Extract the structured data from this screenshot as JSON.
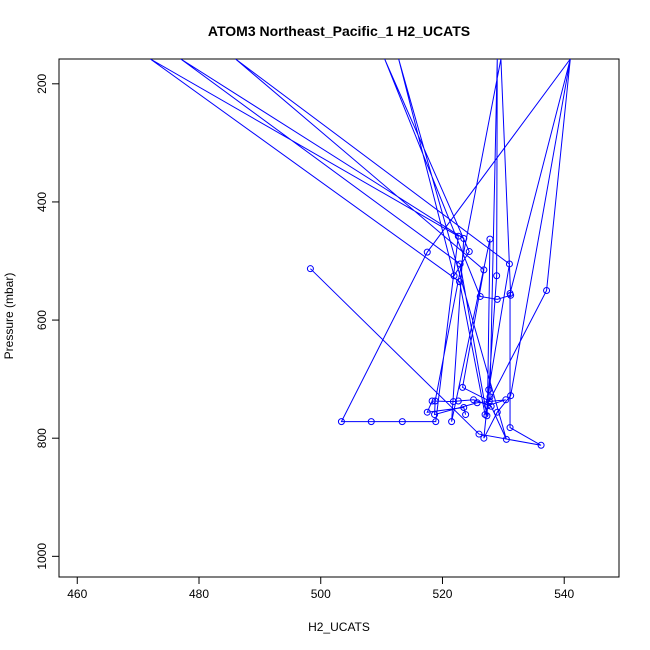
{
  "chart_data": {
    "type": "line",
    "title": "ATOM3 Northeast_Pacific_1 H2_UCATS",
    "xlabel": "H2_UCATS",
    "ylabel": "Pressure (mbar)",
    "xlim": [
      457,
      549
    ],
    "ylim": [
      1035,
      158
    ],
    "y_reversed": true,
    "grid": false,
    "xticks": [
      460,
      480,
      500,
      520,
      540
    ],
    "yticks": [
      200,
      400,
      600,
      800,
      1000
    ],
    "series": [
      {
        "color": "#0000ff",
        "points": [
          [
            498.3,
            513
          ],
          [
            526.0,
            793
          ],
          [
            536.2,
            812
          ],
          [
            531.1,
            782
          ],
          [
            531.1,
            555
          ],
          [
            541.0,
            158
          ],
          [
            537.1,
            550
          ],
          [
            527.7,
            737
          ],
          [
            523.3,
            714
          ],
          [
            526.8,
            515
          ],
          [
            486.0,
            158
          ],
          [
            531.0,
            505
          ],
          [
            527.6,
            718
          ],
          [
            526.8,
            800
          ],
          [
            529.0,
            756
          ],
          [
            531.2,
            728
          ],
          [
            541.0,
            158
          ],
          [
            517.5,
            485
          ],
          [
            503.4,
            772
          ],
          [
            508.3,
            772
          ],
          [
            513.4,
            772
          ],
          [
            518.9,
            772
          ],
          [
            522.6,
            458
          ],
          [
            472.0,
            158
          ],
          [
            522.8,
            535
          ],
          [
            527.0,
            760
          ],
          [
            527.8,
            730
          ],
          [
            529.0,
            158
          ],
          [
            528.9,
            525
          ],
          [
            527.3,
            762
          ],
          [
            522.9,
            505
          ],
          [
            477.0,
            158
          ],
          [
            523.5,
            462
          ],
          [
            521.5,
            772
          ],
          [
            527.8,
            463
          ],
          [
            527.4,
            745
          ],
          [
            530.4,
            735
          ],
          [
            525.7,
            740
          ],
          [
            518.7,
            760
          ],
          [
            518.8,
            737
          ],
          [
            529.6,
            158
          ],
          [
            531.2,
            558
          ],
          [
            529.0,
            565
          ],
          [
            526.2,
            560
          ],
          [
            510.5,
            158
          ],
          [
            524.4,
            484
          ],
          [
            521.9,
            525
          ],
          [
            512.8,
            158
          ],
          [
            530.5,
            802
          ],
          [
            528.0,
            746
          ],
          [
            525.1,
            735
          ],
          [
            522.6,
            737
          ],
          [
            521.8,
            738
          ],
          [
            518.3,
            737
          ],
          [
            517.5,
            756
          ],
          [
            523.5,
            748
          ],
          [
            523.8,
            760
          ]
        ]
      }
    ]
  }
}
